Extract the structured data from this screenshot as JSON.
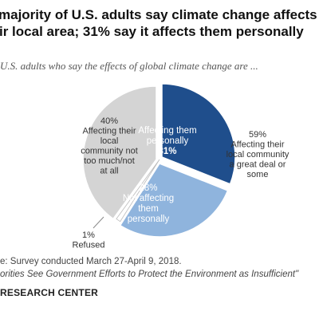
{
  "title_lines": [
    "majority of U.S. adults say climate change affects",
    "ir local area; 31% say it affects them personally"
  ],
  "subtitle": "U.S. adults who say the effects of global climate change are ...",
  "chart_data": {
    "type": "pie",
    "title": "",
    "slices": [
      {
        "name": "Affecting them personally",
        "value": 31,
        "label_lines": [
          "Affecting them",
          "personally",
          "31%"
        ],
        "color": "#1f4e8c"
      },
      {
        "name": "Not affecting them personally",
        "value": 28,
        "label_lines": [
          "28%",
          "Not affecting",
          "them",
          "personally"
        ],
        "color": "#8fb4dd"
      },
      {
        "name": "Refused",
        "value": 1,
        "label_lines": [
          "1%",
          "Refused"
        ],
        "color": "#ffffff"
      },
      {
        "name": "Affecting their local community not too much/not at all",
        "value": 40,
        "label_lines": [
          "40%",
          "Affecting their",
          "local",
          "community not",
          "too much/not",
          "at all"
        ],
        "color": "#d4d4d4"
      }
    ],
    "group_annotation": {
      "label_lines": [
        "59%",
        "Affecting their",
        "local community",
        "a great deal or",
        "some"
      ],
      "value": 59
    }
  },
  "footer": {
    "source": "e: Survey conducted March 27-April 9, 2018.",
    "report": "orities See Government Efforts to Protect the Environment as Insufficient\"",
    "brand": "RESEARCH CENTER"
  }
}
